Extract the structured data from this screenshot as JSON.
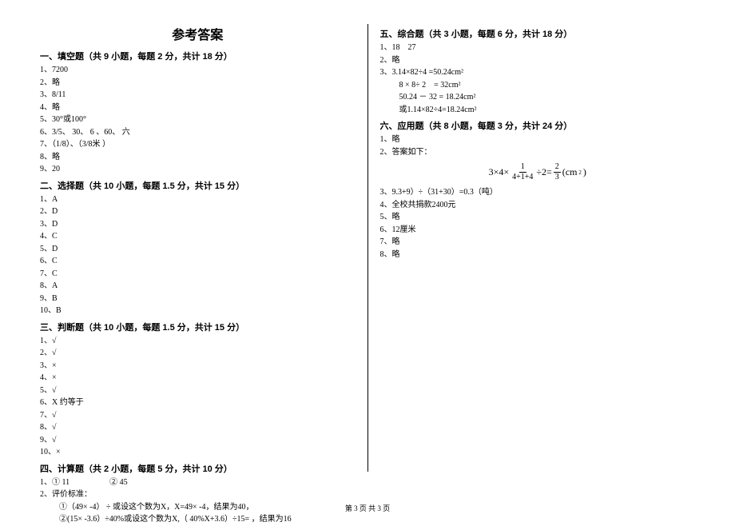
{
  "title": "参考答案",
  "footer": "第 3 页 共 3 页",
  "left": {
    "s1": {
      "header": "一、填空题（共 9 小题，每题 2 分，共计 18 分）",
      "items": [
        "1、7200",
        "2、略",
        "3、8/11",
        "4、略",
        "5、30°或100°",
        "6、3/5、 30、 6 、60、 六",
        "7、（1/8）、（3/8米 ）",
        "8、略",
        "9、20"
      ]
    },
    "s2": {
      "header": "二、选择题（共 10 小题，每题 1.5 分，共计 15 分）",
      "items": [
        "1、A",
        "2、D",
        "3、D",
        "4、C",
        "5、D",
        "6、C",
        "7、C",
        "8、A",
        "9、B",
        "10、B"
      ]
    },
    "s3": {
      "header": "三、判断题（共 10 小题，每题 1.5 分，共计 15 分）",
      "items": [
        "1、√",
        "2、√",
        "3、×",
        "4、×",
        "5、√",
        "6、X 约等于",
        "7、√",
        "8、√",
        "9、√",
        "10、×"
      ]
    },
    "s4": {
      "header": "四、计算题（共 2 小题，每题 5 分，共计 10 分）",
      "items": [
        "1、① 11     ② 45",
        "2、评价标准：",
        " ①（49× -4） ÷ 或设这个数为X，X=49× -4，结果为40，",
        " ②(15× -3.6）÷40%或设这个数为X,（ 40%X+3.6）÷15= ，结果为16"
      ]
    }
  },
  "right": {
    "s5": {
      "header": "五、综合题（共 3 小题，每题 6 分，共计 18 分）",
      "items": [
        "1、18 27",
        "2、略",
        "3、3.14×82÷4 =50.24cm²",
        " 8 × 8÷ 2 = 32cm²",
        " 50.24 － 32 = 18.24cm²",
        " 或1.14×82÷4=18.24cm²"
      ]
    },
    "s6": {
      "header": "六、应用题（共 8 小题，每题 3 分，共计 24 分）",
      "items_a": [
        "1、略",
        "2、答案如下："
      ],
      "formula": {
        "prefix": "3×4×",
        "frac1_num": "1",
        "frac1_den": "4+1+4",
        "mid": "÷2=",
        "frac2_num": "2",
        "frac2_den": "3",
        "suffix": "(cm",
        "sup": "2",
        "close": ")"
      },
      "items_b": [
        "3、9.3+9）÷（31+30）=0.3（吨）",
        "4、全校共捐款2400元",
        "5、略",
        "6、12厘米",
        "7、略",
        "8、略"
      ]
    }
  }
}
